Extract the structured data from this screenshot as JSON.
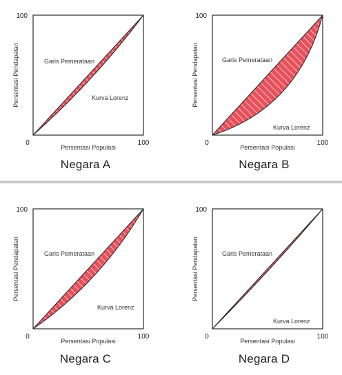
{
  "panels": [
    {
      "title": "Negara A",
      "y_label": "Persentasi Pendapatan",
      "x_label": "Persentasi Populasi",
      "equality_label": "Garis Pemerataan",
      "lorenz_label": "Kurva Lorenz",
      "axis_start": "0",
      "axis_end": "100",
      "lorenz_bulge": 0.1
    },
    {
      "title": "Negara B",
      "y_label": "Persentasi Pendapatan",
      "x_label": "Persentasi Populasi",
      "equality_label": "Garis Pemerataan",
      "lorenz_label": "Kurva Lorenz",
      "axis_start": "0",
      "axis_end": "100",
      "lorenz_bulge": 0.55
    },
    {
      "title": "Negara C",
      "y_label": "Persentasi Pendapatan",
      "x_label": "Persentasi Populasi",
      "equality_label": "Garis Pemerataan",
      "lorenz_label": "Kurva Lorenz",
      "axis_start": "0",
      "axis_end": "100",
      "lorenz_bulge": 0.22
    },
    {
      "title": "Negara D",
      "y_label": "Persentasi Pendapatan",
      "x_label": "Persentasi Populasi",
      "equality_label": "Garis Pemerataan",
      "lorenz_label": "Kurva Lorenz",
      "axis_start": "0",
      "axis_end": "100",
      "lorenz_bulge": 0.04
    }
  ],
  "colors": {
    "fill": "#e8505b",
    "hatch": "#ffffff",
    "line": "#2a2a2a",
    "divider": "#c9c9c9"
  }
}
